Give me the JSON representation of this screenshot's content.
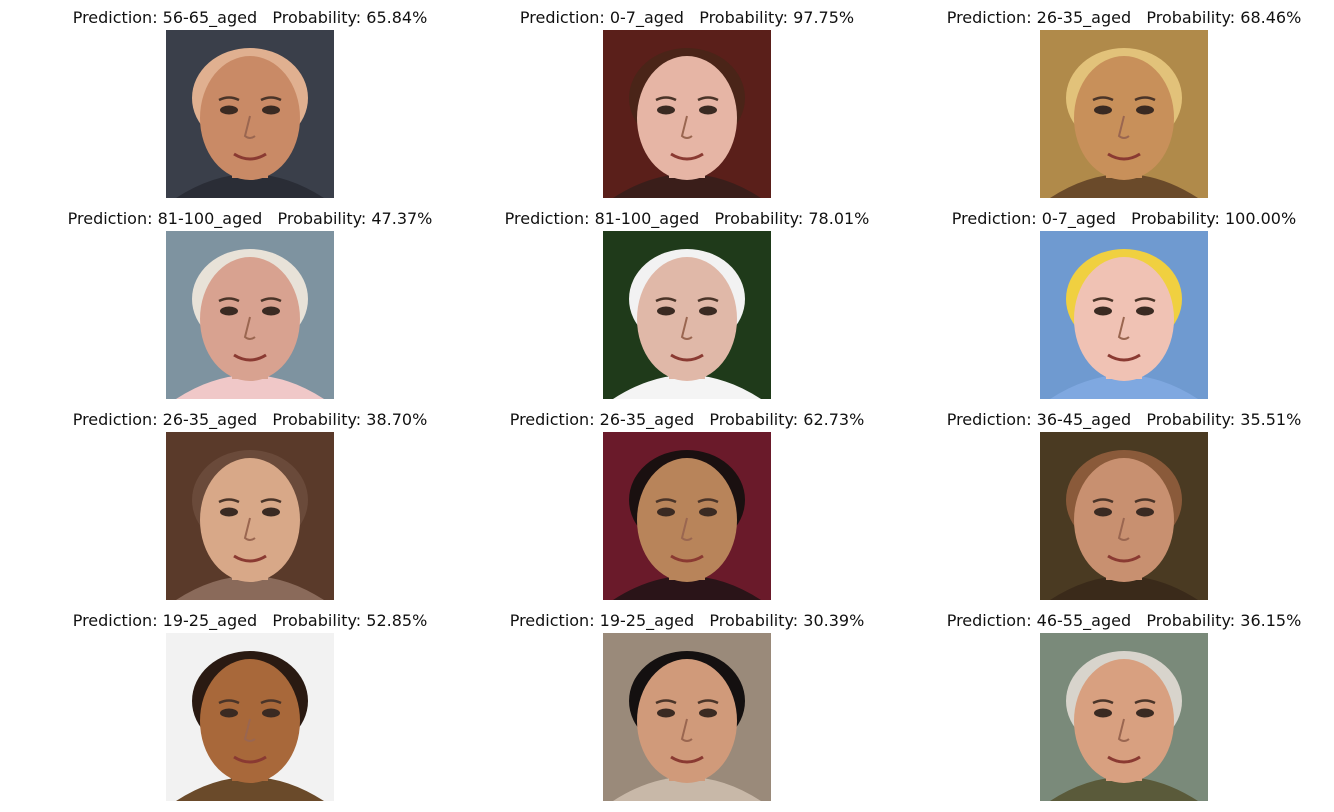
{
  "figure": {
    "panels": [
      {
        "title": "Prediction: 56-65_aged   Probability: 65.84%",
        "prediction": "56-65_aged",
        "probability": 65.84,
        "portrait": {
          "background": "#3a3f4a",
          "skin": "#c98a66",
          "hair": "#e0b090",
          "shirt": "#2a2d36"
        }
      },
      {
        "title": "Prediction: 0-7_aged   Probability: 97.75%",
        "prediction": "0-7_aged",
        "probability": 97.75,
        "portrait": {
          "background": "#5a1f1a",
          "skin": "#e6b5a5",
          "hair": "#4a2418",
          "shirt": "#3a1e1a"
        }
      },
      {
        "title": "Prediction: 26-35_aged   Probability: 68.46%",
        "prediction": "26-35_aged",
        "probability": 68.46,
        "portrait": {
          "background": "#b08a4a",
          "skin": "#c8905a",
          "hair": "#e2c27a",
          "shirt": "#6a4a2a"
        }
      },
      {
        "title": "Prediction: 81-100_aged   Probability: 47.37%",
        "prediction": "81-100_aged",
        "probability": 47.37,
        "portrait": {
          "background": "#7e93a0",
          "skin": "#d8a290",
          "hair": "#e8e2d8",
          "shirt": "#f0c8c8"
        }
      },
      {
        "title": "Prediction: 81-100_aged   Probability: 78.01%",
        "prediction": "81-100_aged",
        "probability": 78.01,
        "portrait": {
          "background": "#1f3a1a",
          "skin": "#e0b8a8",
          "hair": "#f2f2f2",
          "shirt": "#f4f4f4"
        }
      },
      {
        "title": "Prediction: 0-7_aged   Probability: 100.00%",
        "prediction": "0-7_aged",
        "probability": 100.0,
        "portrait": {
          "background": "#6f9ad0",
          "skin": "#f0c2b4",
          "hair": "#f0d040",
          "shirt": "#7fa8e0"
        }
      },
      {
        "title": "Prediction: 26-35_aged   Probability: 38.70%",
        "prediction": "26-35_aged",
        "probability": 38.7,
        "portrait": {
          "background": "#5a3a2a",
          "skin": "#d8a888",
          "hair": "#6a4a3a",
          "shirt": "#8a6a5a"
        }
      },
      {
        "title": "Prediction: 26-35_aged   Probability: 62.73%",
        "prediction": "26-35_aged",
        "probability": 62.73,
        "portrait": {
          "background": "#6a1a2a",
          "skin": "#b8845a",
          "hair": "#1a1010",
          "shirt": "#2a1418"
        }
      },
      {
        "title": "Prediction: 36-45_aged   Probability: 35.51%",
        "prediction": "36-45_aged",
        "probability": 35.51,
        "portrait": {
          "background": "#4a3a22",
          "skin": "#c89070",
          "hair": "#8a5a3a",
          "shirt": "#3a2a1a"
        }
      },
      {
        "title": "Prediction: 19-25_aged   Probability: 52.85%",
        "prediction": "19-25_aged",
        "probability": 52.85,
        "portrait": {
          "background": "#f2f2f2",
          "skin": "#a8683a",
          "hair": "#2a1a12",
          "shirt": "#6a4a2a"
        }
      },
      {
        "title": "Prediction: 19-25_aged   Probability: 30.39%",
        "prediction": "19-25_aged",
        "probability": 30.39,
        "portrait": {
          "background": "#9a8a7a",
          "skin": "#d09a7a",
          "hair": "#141010",
          "shirt": "#c8b8a8"
        }
      },
      {
        "title": "Prediction: 46-55_aged   Probability: 36.15%",
        "prediction": "46-55_aged",
        "probability": 36.15,
        "portrait": {
          "background": "#7a8a7a",
          "skin": "#d8a080",
          "hair": "#d8d4cc",
          "shirt": "#5a5a3a"
        }
      }
    ]
  }
}
